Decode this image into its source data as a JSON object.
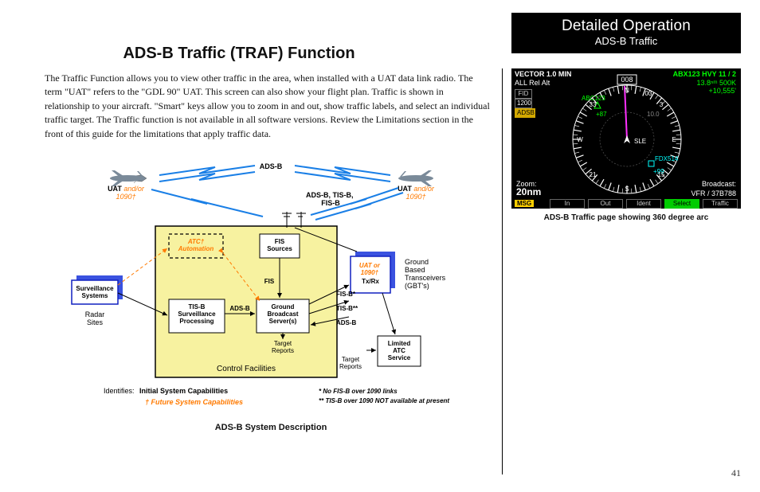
{
  "header": {
    "title": "Detailed Operation",
    "subtitle": "ADS-B Traffic"
  },
  "main_title": "ADS-B Traffic (TRAF) Function",
  "body_text": "The Traffic Function allows you to view other traffic in the area, when installed with a UAT data link radio. The term \"UAT\" refers to the \"GDL 90\" UAT. This screen can also show your flight plan. Traffic is shown in relationship to your aircraft. \"Smart\" keys allow you to zoom in and out, show traffic labels, and select an individual traffic target. The Traffic function is not available in all software versions. Review the Limitations section in the front of this guide for the limitations that apply traffic data.",
  "diagram": {
    "adsb_top": "ADS-B",
    "uat_left": "UAT",
    "uat_left_or": " and/or",
    "uat_left_sub": "1090†",
    "uat_right": "UAT",
    "uat_right_or": " and/or",
    "uat_right_sub": "1090†",
    "center_label": "ADS-B, TIS-B,\nFIS-B",
    "atc_automation": "ATC†\nAutomation",
    "fis_sources": "FIS\nSources",
    "surv_systems": "Surveillance\nSystems",
    "radar_sites": "Radar\nSites",
    "tisb_proc": "TIS-B\nSurveillance\nProcessing",
    "gbs": "Ground\nBroadcast\nServer(s)",
    "uat_tx_rx": "UAT or\n1090†\nTx/Rx",
    "gbt": "Ground\nBased\nTransceivers\n(GBT's)",
    "limited_atc": "Limited\nATC\nService",
    "control_facilities": "Control Facilities",
    "arrow_adsb": "ADS-B",
    "arrow_fis": "FIS",
    "arrow_fisb": "FIS-B*",
    "arrow_tisb": "TIS-B**",
    "arrow_adsb2": "ADS-B",
    "arrow_target": "Target\nReports",
    "arrow_target2": "Target\nReports",
    "legend_identifies": "Identifies:",
    "legend_initial": "Initial System Capabilities",
    "legend_future": "† Future System Capabilities",
    "foot_1": "* No FIS-B over 1090 links",
    "foot_2": "** TIS-B over 1090 NOT available at present",
    "caption": "ADS-B System Description",
    "colors": {
      "control_bg": "#f7f2a0",
      "control_border": "#000000",
      "blue_box_border": "#1020c0",
      "blue_box_shadow": "#3a52e0",
      "white_box_border": "#000000",
      "dash_orange": "#ff7a00",
      "bolt_blue": "#1a7fe6",
      "plane_fill": "#7a8a99"
    }
  },
  "scope": {
    "status": "VECTOR 1.0 MIN",
    "status_sub": "ALL Rel Alt",
    "fid": "FID",
    "squawk": "1200",
    "adsb_badge": "ADSB",
    "green_callsign": "ABX123 HVY 11 / 2",
    "green_line2": "13.8ⁿᵐ 500K",
    "green_line3": "+10,555'",
    "heading": "008",
    "traffic1": "ABC123",
    "traffic1_alt": "+87",
    "traffic2": "FDX514",
    "traffic2_alt": "+99",
    "own_label": "SLE",
    "ring_label": "10.0",
    "zoom_label": "Zoom:",
    "zoom_value": "20nm",
    "broadcast_label": "Broadcast:",
    "broadcast_value": "VFR / 37B788",
    "msg": "MSG",
    "softkeys": [
      "In",
      "Out",
      "Ident",
      "Select",
      "Traffic"
    ],
    "softkey_selected_index": 3,
    "caption": "ADS-B Traffic page showing 360 degree arc",
    "colors": {
      "bg": "#000000",
      "green": "#00ff00",
      "cyan": "#00ffff",
      "magenta": "#ff30ff",
      "amber": "#d2a800",
      "white": "#ffffff",
      "gray": "#888888"
    }
  },
  "page_number": "41"
}
